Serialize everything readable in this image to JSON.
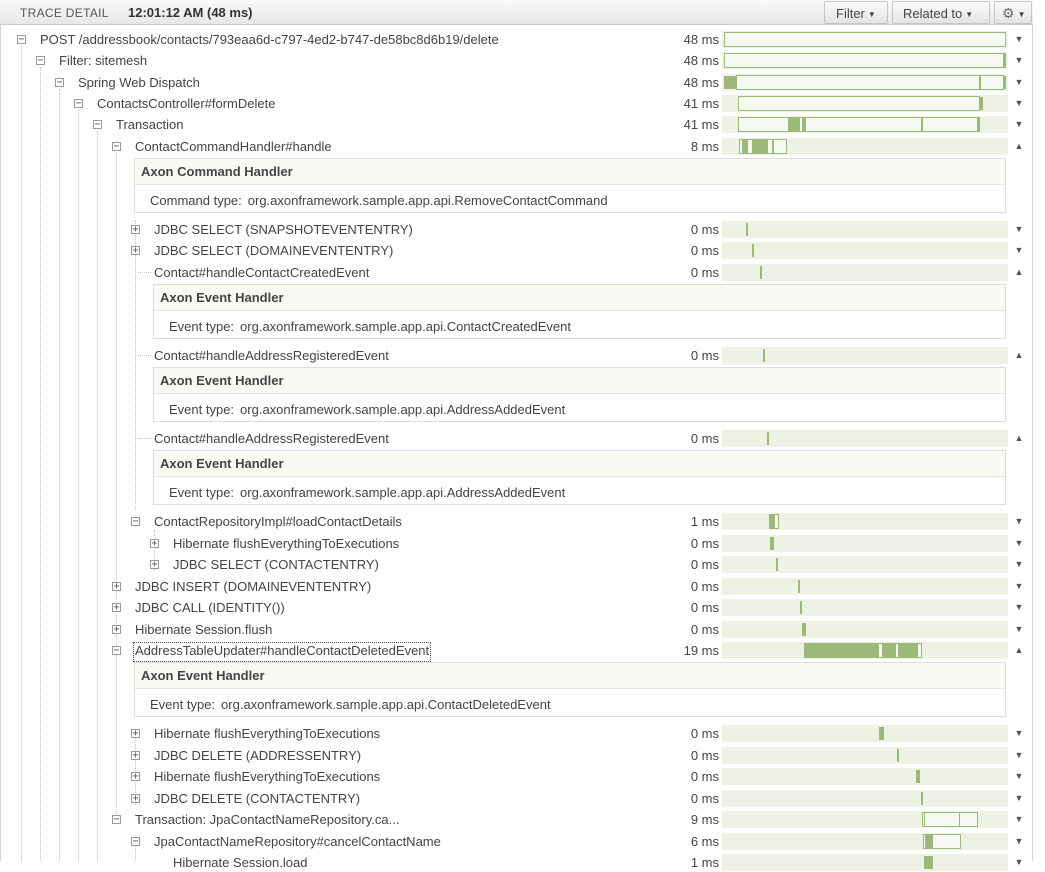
{
  "header": {
    "title": "TRACE DETAIL",
    "time": "12:01:12 AM (48 ms)",
    "filter_label": "Filter",
    "related_label": "Related to",
    "gear_icon": "gear-icon"
  },
  "rows": [
    {
      "label": "POST /addressbook/contacts/793eaa6d-c797-4ed2-b747-de58bc8d6b19/delete",
      "duration": "48 ms",
      "toggle": "−",
      "arrow": "▼"
    },
    {
      "label": "Filter: sitemesh",
      "duration": "48 ms",
      "toggle": "−",
      "arrow": "▼"
    },
    {
      "label": "Spring Web Dispatch",
      "duration": "48 ms",
      "toggle": "−",
      "arrow": "▼"
    },
    {
      "label": "ContactsController#formDelete",
      "duration": "41 ms",
      "toggle": "−",
      "arrow": "▼"
    },
    {
      "label": "Transaction",
      "duration": "41 ms",
      "toggle": "−",
      "arrow": "▼"
    },
    {
      "label": "ContactCommandHandler#handle",
      "duration": "8 ms",
      "toggle": "−",
      "arrow": "▲"
    },
    {
      "label": "JDBC SELECT (SNAPSHOTEVENTENTRY)",
      "duration": "0 ms",
      "toggle": "+",
      "arrow": "▼"
    },
    {
      "label": "JDBC SELECT (DOMAINEVENTENTRY)",
      "duration": "0 ms",
      "toggle": "+",
      "arrow": "▼"
    },
    {
      "label": "Contact#handleContactCreatedEvent",
      "duration": "0 ms",
      "toggle": "",
      "arrow": "▲"
    },
    {
      "label": "Contact#handleAddressRegisteredEvent",
      "duration": "0 ms",
      "toggle": "",
      "arrow": "▲"
    },
    {
      "label": "Contact#handleAddressRegisteredEvent",
      "duration": "0 ms",
      "toggle": "",
      "arrow": "▲"
    },
    {
      "label": "ContactRepositoryImpl#loadContactDetails",
      "duration": "1 ms",
      "toggle": "−",
      "arrow": "▼"
    },
    {
      "label": "Hibernate flushEverythingToExecutions",
      "duration": "0 ms",
      "toggle": "+",
      "arrow": "▼"
    },
    {
      "label": "JDBC SELECT (CONTACTENTRY)",
      "duration": "0 ms",
      "toggle": "+",
      "arrow": "▼"
    },
    {
      "label": "JDBC INSERT (DOMAINEVENTENTRY)",
      "duration": "0 ms",
      "toggle": "+",
      "arrow": "▼"
    },
    {
      "label": "JDBC CALL (IDENTITY())",
      "duration": "0 ms",
      "toggle": "+",
      "arrow": "▼"
    },
    {
      "label": "Hibernate Session.flush",
      "duration": "0 ms",
      "toggle": "+",
      "arrow": "▼"
    },
    {
      "label": "AddressTableUpdater#handleContactDeletedEvent",
      "duration": "19 ms",
      "toggle": "−",
      "arrow": "▲"
    },
    {
      "label": "Hibernate flushEverythingToExecutions",
      "duration": "0 ms",
      "toggle": "+",
      "arrow": "▼"
    },
    {
      "label": "JDBC DELETE (ADDRESSENTRY)",
      "duration": "0 ms",
      "toggle": "+",
      "arrow": "▼"
    },
    {
      "label": "Hibernate flushEverythingToExecutions",
      "duration": "0 ms",
      "toggle": "+",
      "arrow": "▼"
    },
    {
      "label": "JDBC DELETE (CONTACTENTRY)",
      "duration": "0 ms",
      "toggle": "+",
      "arrow": "▼"
    },
    {
      "label": "Transaction: JpaContactNameRepository.ca...",
      "duration": "9 ms",
      "toggle": "−",
      "arrow": "▼"
    },
    {
      "label": "JpaContactNameRepository#cancelContactName",
      "duration": "6 ms",
      "toggle": "−",
      "arrow": "▼"
    },
    {
      "label": "Hibernate Session.load",
      "duration": "1 ms",
      "toggle": "",
      "arrow": "▼"
    }
  ],
  "details": [
    {
      "title": "Axon Command Handler",
      "key": "Command type:",
      "value": "org.axonframework.sample.app.api.RemoveContactCommand"
    },
    {
      "title": "Axon Event Handler",
      "key": "Event type:",
      "value": "org.axonframework.sample.app.api.ContactCreatedEvent"
    },
    {
      "title": "Axon Event Handler",
      "key": "Event type:",
      "value": "org.axonframework.sample.app.api.AddressAddedEvent"
    },
    {
      "title": "Axon Event Handler",
      "key": "Event type:",
      "value": "org.axonframework.sample.app.api.AddressAddedEvent"
    },
    {
      "title": "Axon Event Handler",
      "key": "Event type:",
      "value": "org.axonframework.sample.app.api.ContactDeletedEvent"
    }
  ],
  "colors": {
    "bar_bg": "#edf2e4",
    "bar_fill": "#9cb97a"
  }
}
